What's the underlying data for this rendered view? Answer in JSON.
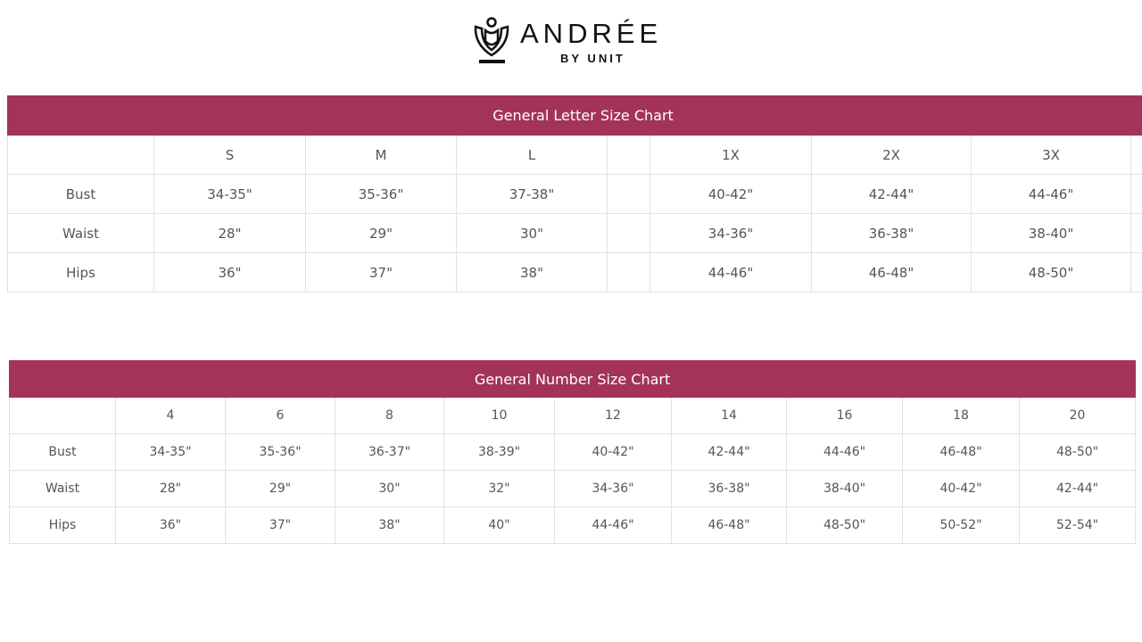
{
  "brand": {
    "name": "ANDRÉE",
    "sub": "BY UNIT"
  },
  "colors": {
    "header": "#a3335a"
  },
  "letter_chart": {
    "title": "General Letter Size Chart",
    "sizes": [
      "S",
      "M",
      "L",
      "",
      "1X",
      "2X",
      "3X"
    ],
    "rows": [
      {
        "label": "Bust",
        "values": [
          "34-35\"",
          "35-36\"",
          "37-38\"",
          "",
          "40-42\"",
          "42-44\"",
          "44-46\""
        ]
      },
      {
        "label": "Waist",
        "values": [
          "28\"",
          "29\"",
          "30\"",
          "",
          "34-36\"",
          "36-38\"",
          "38-40\""
        ]
      },
      {
        "label": "Hips",
        "values": [
          "36\"",
          "37\"",
          "38\"",
          "",
          "44-46\"",
          "46-48\"",
          "48-50\""
        ]
      }
    ]
  },
  "number_chart": {
    "title": "General Number Size Chart",
    "sizes": [
      "4",
      "6",
      "8",
      "10",
      "12",
      "14",
      "16",
      "18",
      "20"
    ],
    "rows": [
      {
        "label": "Bust",
        "values": [
          "34-35\"",
          "35-36\"",
          "36-37\"",
          "38-39\"",
          "40-42\"",
          "42-44\"",
          "44-46\"",
          "46-48\"",
          "48-50\""
        ]
      },
      {
        "label": "Waist",
        "values": [
          "28\"",
          "29\"",
          "30\"",
          "32\"",
          "34-36\"",
          "36-38\"",
          "38-40\"",
          "40-42\"",
          "42-44\""
        ]
      },
      {
        "label": "Hips",
        "values": [
          "36\"",
          "37\"",
          "38\"",
          "40\"",
          "44-46\"",
          "46-48\"",
          "48-50\"",
          "50-52\"",
          "52-54\""
        ]
      }
    ]
  }
}
